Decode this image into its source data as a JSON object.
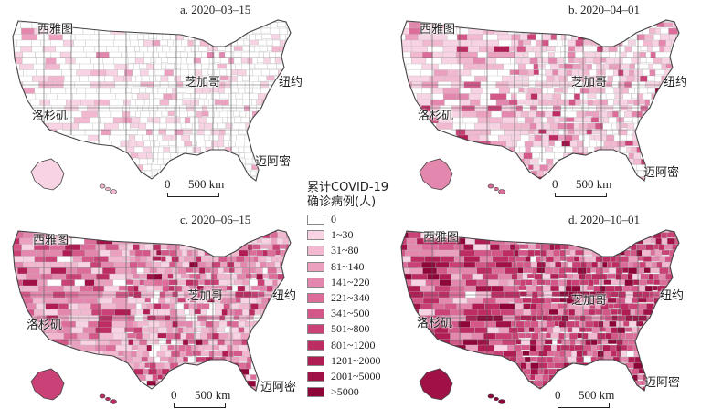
{
  "panels": [
    {
      "title": "a. 2020–03–15",
      "weights": [
        0.72,
        0.18,
        0.06,
        0.03,
        0.01,
        0,
        0,
        0,
        0,
        0,
        0,
        0
      ]
    },
    {
      "title": "b. 2020–04–01",
      "weights": [
        0.34,
        0.3,
        0.14,
        0.08,
        0.05,
        0.03,
        0.02,
        0.02,
        0.01,
        0.005,
        0.003,
        0.002
      ]
    },
    {
      "title": "c. 2020–06–15",
      "weights": [
        0.05,
        0.18,
        0.17,
        0.14,
        0.12,
        0.09,
        0.08,
        0.07,
        0.05,
        0.025,
        0.015,
        0.01
      ]
    },
    {
      "title": "d. 2020–10–01",
      "weights": [
        0.01,
        0.04,
        0.06,
        0.08,
        0.09,
        0.1,
        0.12,
        0.14,
        0.13,
        0.1,
        0.07,
        0.06
      ]
    }
  ],
  "cities": {
    "seattle": "西雅图",
    "chicago": "芝加哥",
    "new_york": "纽约",
    "los_angeles": "洛杉矶",
    "miami": "迈阿密"
  },
  "scale_bar": {
    "zero": "0",
    "distance": "500 km"
  },
  "legend": {
    "title_line1": "累计COVID-19",
    "title_line2": "确诊病例(人)",
    "classes": [
      {
        "label": "0",
        "color": "#ffffff"
      },
      {
        "label": "1~30",
        "color": "#f7d3e3"
      },
      {
        "label": "31~80",
        "color": "#f1b8d0"
      },
      {
        "label": "81~140",
        "color": "#eba0c0"
      },
      {
        "label": "141~220",
        "color": "#e487ae"
      },
      {
        "label": "221~340",
        "color": "#dc6d9b"
      },
      {
        "label": "341~500",
        "color": "#d35789"
      },
      {
        "label": "501~800",
        "color": "#c94176"
      },
      {
        "label": "801~1200",
        "color": "#be2c64"
      },
      {
        "label": "1201~2000",
        "color": "#b01d55"
      },
      {
        "label": "2001~5000",
        "color": "#a01148"
      },
      {
        "label": ">5000",
        "color": "#8e0639"
      }
    ]
  }
}
